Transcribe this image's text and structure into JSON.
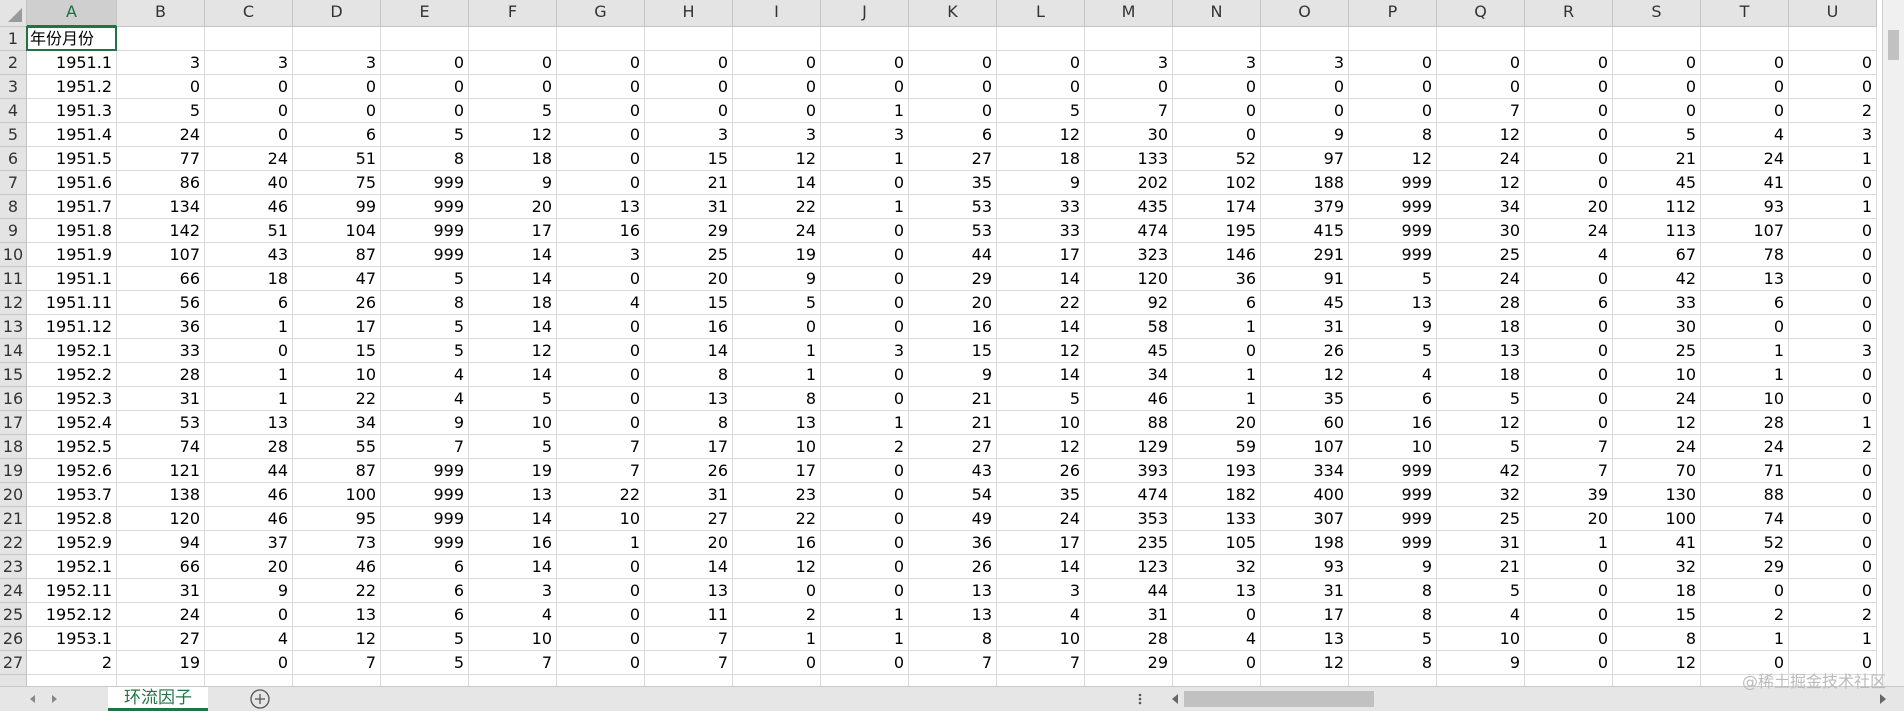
{
  "sheet": {
    "columns": [
      "A",
      "B",
      "C",
      "D",
      "E",
      "F",
      "G",
      "H",
      "I",
      "J",
      "K",
      "L",
      "M",
      "N",
      "O",
      "P",
      "Q",
      "R",
      "S",
      "T",
      "U"
    ],
    "row_numbers": [
      1,
      2,
      3,
      4,
      5,
      6,
      7,
      8,
      9,
      10,
      11,
      12,
      13,
      14,
      15,
      16,
      17,
      18,
      19,
      20,
      21,
      22,
      23,
      24,
      25,
      26,
      27
    ],
    "rows": [
      [
        "年份月份"
      ],
      [
        "1951.1",
        3,
        3,
        3,
        0,
        0,
        0,
        0,
        0,
        0,
        0,
        0,
        3,
        3,
        3,
        0,
        0,
        0,
        0,
        0,
        0
      ],
      [
        "1951.2",
        0,
        0,
        0,
        0,
        0,
        0,
        0,
        0,
        0,
        0,
        0,
        0,
        0,
        0,
        0,
        0,
        0,
        0,
        0,
        0
      ],
      [
        "1951.3",
        5,
        0,
        0,
        0,
        5,
        0,
        0,
        0,
        1,
        0,
        5,
        7,
        0,
        0,
        0,
        7,
        0,
        0,
        0,
        2
      ],
      [
        "1951.4",
        24,
        0,
        6,
        5,
        12,
        0,
        3,
        3,
        3,
        6,
        12,
        30,
        0,
        9,
        8,
        12,
        0,
        5,
        4,
        3
      ],
      [
        "1951.5",
        77,
        24,
        51,
        8,
        18,
        0,
        15,
        12,
        1,
        27,
        18,
        133,
        52,
        97,
        12,
        24,
        0,
        21,
        24,
        1
      ],
      [
        "1951.6",
        86,
        40,
        75,
        999,
        9,
        0,
        21,
        14,
        0,
        35,
        9,
        202,
        102,
        188,
        999,
        12,
        0,
        45,
        41,
        0
      ],
      [
        "1951.7",
        134,
        46,
        99,
        999,
        20,
        13,
        31,
        22,
        1,
        53,
        33,
        435,
        174,
        379,
        999,
        34,
        20,
        112,
        93,
        1
      ],
      [
        "1951.8",
        142,
        51,
        104,
        999,
        17,
        16,
        29,
        24,
        0,
        53,
        33,
        474,
        195,
        415,
        999,
        30,
        24,
        113,
        107,
        0
      ],
      [
        "1951.9",
        107,
        43,
        87,
        999,
        14,
        3,
        25,
        19,
        0,
        44,
        17,
        323,
        146,
        291,
        999,
        25,
        4,
        67,
        78,
        0
      ],
      [
        "1951.1",
        66,
        18,
        47,
        5,
        14,
        0,
        20,
        9,
        0,
        29,
        14,
        120,
        36,
        91,
        5,
        24,
        0,
        42,
        13,
        0
      ],
      [
        "1951.11",
        56,
        6,
        26,
        8,
        18,
        4,
        15,
        5,
        0,
        20,
        22,
        92,
        6,
        45,
        13,
        28,
        6,
        33,
        6,
        0
      ],
      [
        "1951.12",
        36,
        1,
        17,
        5,
        14,
        0,
        16,
        0,
        0,
        16,
        14,
        58,
        1,
        31,
        9,
        18,
        0,
        30,
        0,
        0
      ],
      [
        "1952.1",
        33,
        0,
        15,
        5,
        12,
        0,
        14,
        1,
        3,
        15,
        12,
        45,
        0,
        26,
        5,
        13,
        0,
        25,
        1,
        3
      ],
      [
        "1952.2",
        28,
        1,
        10,
        4,
        14,
        0,
        8,
        1,
        0,
        9,
        14,
        34,
        1,
        12,
        4,
        18,
        0,
        10,
        1,
        0
      ],
      [
        "1952.3",
        31,
        1,
        22,
        4,
        5,
        0,
        13,
        8,
        0,
        21,
        5,
        46,
        1,
        35,
        6,
        5,
        0,
        24,
        10,
        0
      ],
      [
        "1952.4",
        53,
        13,
        34,
        9,
        10,
        0,
        8,
        13,
        1,
        21,
        10,
        88,
        20,
        60,
        16,
        12,
        0,
        12,
        28,
        1
      ],
      [
        "1952.5",
        74,
        28,
        55,
        7,
        5,
        7,
        17,
        10,
        2,
        27,
        12,
        129,
        59,
        107,
        10,
        5,
        7,
        24,
        24,
        2
      ],
      [
        "1952.6",
        121,
        44,
        87,
        999,
        19,
        7,
        26,
        17,
        0,
        43,
        26,
        393,
        193,
        334,
        999,
        42,
        7,
        70,
        71,
        0
      ],
      [
        "1953.7",
        138,
        46,
        100,
        999,
        13,
        22,
        31,
        23,
        0,
        54,
        35,
        474,
        182,
        400,
        999,
        32,
        39,
        130,
        88,
        0
      ],
      [
        "1952.8",
        120,
        46,
        95,
        999,
        14,
        10,
        27,
        22,
        0,
        49,
        24,
        353,
        133,
        307,
        999,
        25,
        20,
        100,
        74,
        0
      ],
      [
        "1952.9",
        94,
        37,
        73,
        999,
        16,
        1,
        20,
        16,
        0,
        36,
        17,
        235,
        105,
        198,
        999,
        31,
        1,
        41,
        52,
        0
      ],
      [
        "1952.1",
        66,
        20,
        46,
        6,
        14,
        0,
        14,
        12,
        0,
        26,
        14,
        123,
        32,
        93,
        9,
        21,
        0,
        32,
        29,
        0
      ],
      [
        "1952.11",
        31,
        9,
        22,
        6,
        3,
        0,
        13,
        0,
        0,
        13,
        3,
        44,
        13,
        31,
        8,
        5,
        0,
        18,
        0,
        0
      ],
      [
        "1952.12",
        24,
        0,
        13,
        6,
        4,
        0,
        11,
        2,
        1,
        13,
        4,
        31,
        0,
        17,
        8,
        4,
        0,
        15,
        2,
        2
      ],
      [
        "1953.1",
        27,
        4,
        12,
        5,
        10,
        0,
        7,
        1,
        1,
        8,
        10,
        28,
        4,
        13,
        5,
        10,
        0,
        8,
        1,
        1
      ],
      [
        "2",
        19,
        0,
        7,
        5,
        7,
        0,
        7,
        0,
        0,
        7,
        7,
        29,
        0,
        12,
        8,
        9,
        0,
        12,
        0,
        0
      ]
    ],
    "sheet_tab": "环流因子",
    "watermark": "@稀土掘金技术社区"
  }
}
